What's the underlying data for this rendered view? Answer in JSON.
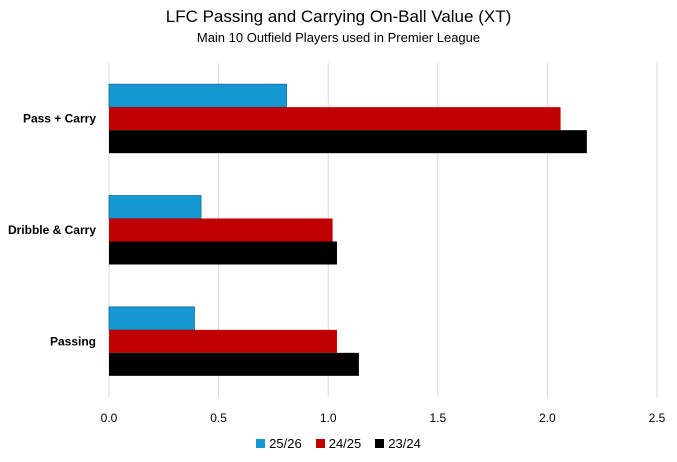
{
  "chart_data": {
    "type": "bar",
    "orientation": "horizontal",
    "title": "LFC Passing and Carrying On-Ball Value (XT)",
    "subtitle": "Main 10 Outfield Players used in Premier League",
    "categories": [
      "Pass + Carry",
      "Dribble & Carry",
      "Passing"
    ],
    "series": [
      {
        "name": "25/26",
        "color": "#1597d1",
        "values": [
          0.81,
          0.42,
          0.39
        ]
      },
      {
        "name": "24/25",
        "color": "#c00000",
        "values": [
          2.06,
          1.02,
          1.04
        ]
      },
      {
        "name": "23/24",
        "color": "#000000",
        "values": [
          2.18,
          1.04,
          1.14
        ]
      }
    ],
    "xlim": [
      0,
      2.5
    ],
    "xticks": [
      "0.0",
      "0.5",
      "1.0",
      "1.5",
      "2.0",
      "2.5"
    ],
    "grid": true,
    "legend_position": "bottom"
  }
}
